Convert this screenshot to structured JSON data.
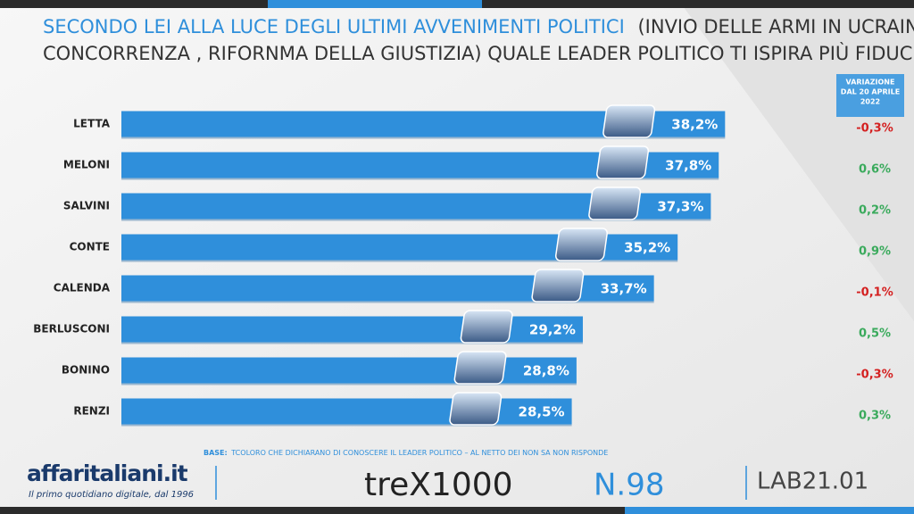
{
  "chart_data": {
    "type": "bar",
    "orientation": "horizontal",
    "title_part1": "SECONDO LEI ALLA  LUCE DEGLI ULTIMI AVVENIMENTI POLITICI",
    "title_part2": "(INVIO DELLE ARMI IN UCRAINA, DDL",
    "title_part3": "CONCORRENZA , RIFORNMA DELLA GIUSTIZIA) QUALE LEADER POLITICO TI ISPIRA PIÙ FIDUCIA?",
    "categories": [
      "LETTA",
      "MELONI",
      "SALVINI",
      "CONTE",
      "CALENDA",
      "BERLUSCONI",
      "BONINO",
      "RENZI"
    ],
    "values": [
      38.2,
      37.8,
      37.3,
      35.2,
      33.7,
      29.2,
      28.8,
      28.5
    ],
    "value_labels": [
      "38,2%",
      "37,8%",
      "37,3%",
      "35,2%",
      "33,7%",
      "29,2%",
      "28,8%",
      "28,5%"
    ],
    "color": "#2f8fdb",
    "xlim": [
      0,
      44
    ],
    "variation_header": [
      "VARIAZIONE",
      "DAL 20 APRILE",
      "2022"
    ],
    "variation": [
      -0.3,
      0.6,
      0.2,
      0.9,
      -0.1,
      0.5,
      -0.3,
      0.3
    ],
    "variation_labels": [
      "-0,3%",
      "0,6%",
      "0,2%",
      "0,9%",
      "-0,1%",
      "0,5%",
      "-0,3%",
      "0,3%"
    ],
    "positive_color": "#3aaa5c",
    "negative_color": "#d42020",
    "base_label": "BASE:",
    "base_note": "TCOLORO CHE DICHIARANO DI CONOSCERE IL LEADER POLITICO – AL NETTO DEI NON SA NON RISPONDE",
    "brand": "affaritaliani.it",
    "brand_tagline": "Il primo quotidiano digitale, dal 1996",
    "logo_trex": "treX1000",
    "issue": "N.98",
    "lab": "LAB21.01"
  }
}
